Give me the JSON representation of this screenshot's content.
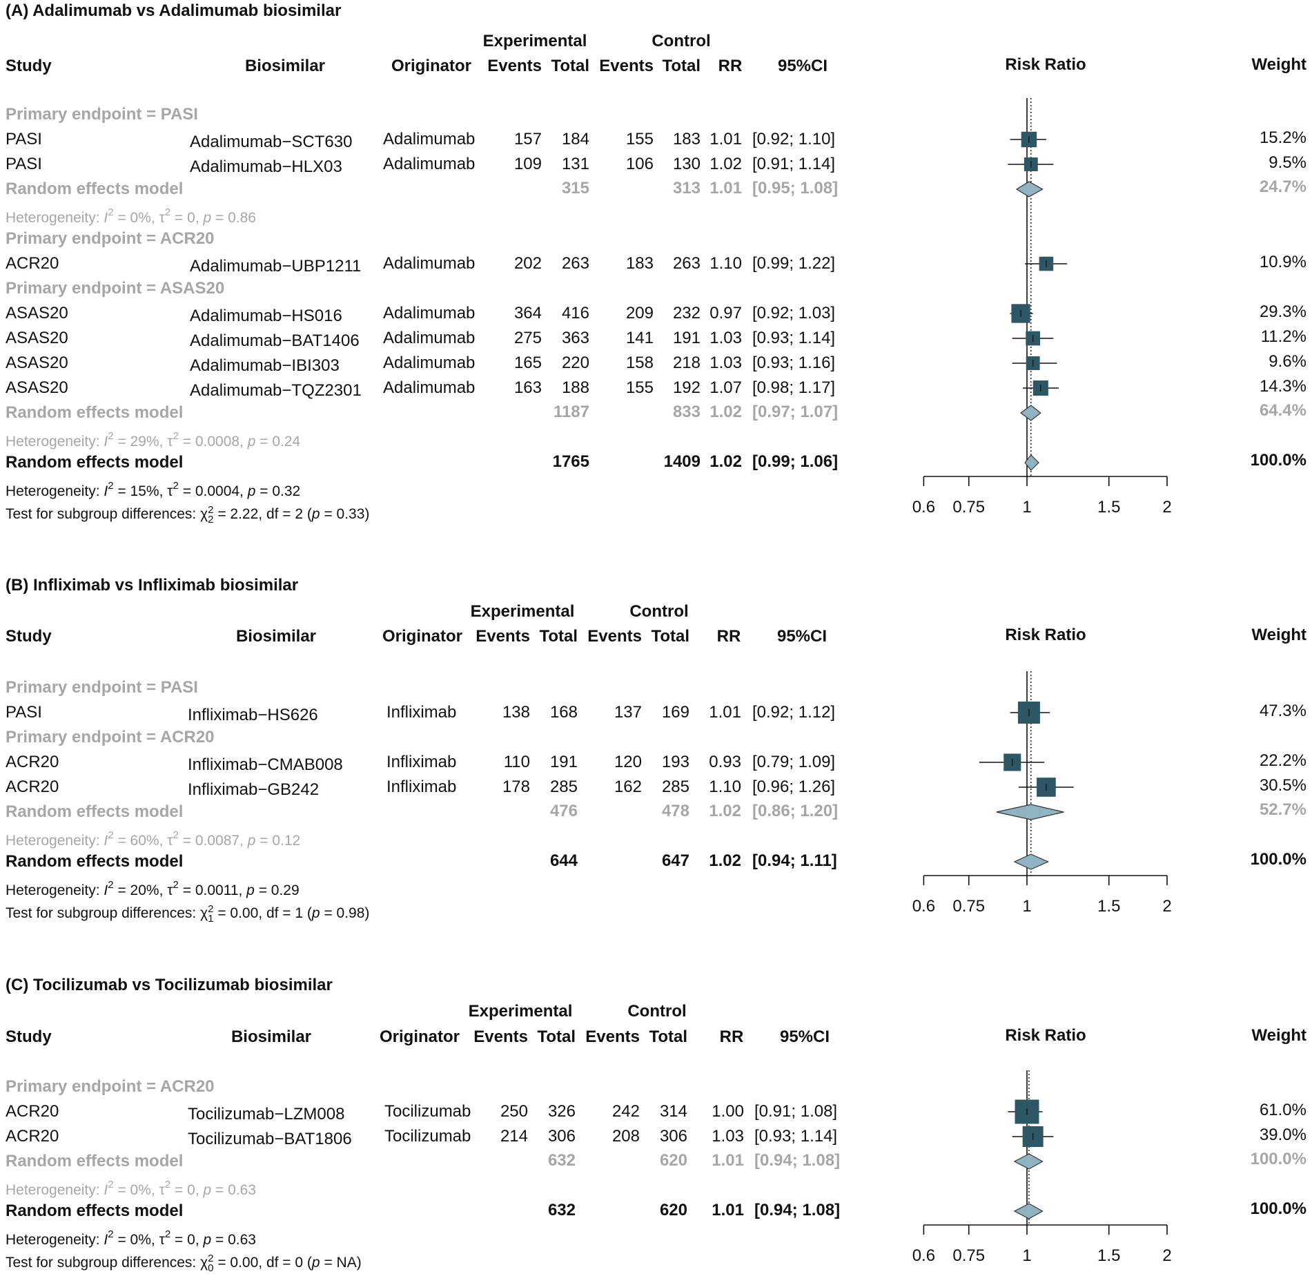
{
  "chart_data": {
    "type": "forest",
    "measure": "Risk Ratio",
    "xaxis_ticks": [
      "0.6",
      "0.75",
      "1",
      "1.5",
      "2"
    ],
    "xaxis_scale": "log",
    "panels": [
      {
        "title": "(A) Adalimumab  vs Adalimumab biosimilar",
        "headers": {
          "study": "Study",
          "biosimilar": "Biosimilar",
          "originator": "Originator",
          "experimental": "Experimental",
          "control": "Control",
          "events": "Events",
          "total": "Total",
          "rr": "RR",
          "ci": "95%CI",
          "plot": "Risk Ratio",
          "weight": "Weight"
        },
        "rows": [
          {
            "type": "subgroup",
            "label": "Primary endpoint = PASI"
          },
          {
            "type": "study",
            "study": "PASI",
            "biosimilar": "Adalimumab−SCT630",
            "originator": "Adalimumab",
            "e_events": "157",
            "e_total": "184",
            "c_events": "155",
            "c_total": "183",
            "rr": "1.01",
            "ci": "[0.92; 1.10]",
            "weight": "15.2%",
            "est": 1.01,
            "lo": 0.92,
            "hi": 1.1,
            "w": 15.2
          },
          {
            "type": "study",
            "study": "PASI",
            "biosimilar": "Adalimumab−HLX03",
            "originator": "Adalimumab",
            "e_events": "109",
            "e_total": "131",
            "c_events": "106",
            "c_total": "130",
            "rr": "1.02",
            "ci": "[0.91; 1.14]",
            "weight": "9.5%",
            "est": 1.02,
            "lo": 0.91,
            "hi": 1.14,
            "w": 9.5
          },
          {
            "type": "sub_model",
            "label": "Random effects model",
            "e_total": "315",
            "c_total": "313",
            "rr": "1.01",
            "ci": "[0.95; 1.08]",
            "weight": "24.7%",
            "est": 1.01,
            "lo": 0.95,
            "hi": 1.08
          },
          {
            "type": "sub_het",
            "label": "Heterogeneity: I² = 0%, τ² = 0, p = 0.86"
          },
          {
            "type": "subgroup",
            "label": "Primary endpoint = ACR20"
          },
          {
            "type": "study",
            "study": "ACR20",
            "biosimilar": "Adalimumab−UBP1211",
            "originator": "Adalimumab",
            "e_events": "202",
            "e_total": "263",
            "c_events": "183",
            "c_total": "263",
            "rr": "1.10",
            "ci": "[0.99; 1.22]",
            "weight": "10.9%",
            "est": 1.1,
            "lo": 0.99,
            "hi": 1.22,
            "w": 10.9
          },
          {
            "type": "subgroup",
            "label": "Primary endpoint = ASAS20"
          },
          {
            "type": "study",
            "study": "ASAS20",
            "biosimilar": "Adalimumab−HS016",
            "originator": "Adalimumab",
            "e_events": "364",
            "e_total": "416",
            "c_events": "209",
            "c_total": "232",
            "rr": "0.97",
            "ci": "[0.92; 1.03]",
            "weight": "29.3%",
            "est": 0.97,
            "lo": 0.92,
            "hi": 1.03,
            "w": 29.3
          },
          {
            "type": "study",
            "study": "ASAS20",
            "biosimilar": "Adalimumab−BAT1406",
            "originator": "Adalimumab",
            "e_events": "275",
            "e_total": "363",
            "c_events": "141",
            "c_total": "191",
            "rr": "1.03",
            "ci": "[0.93; 1.14]",
            "weight": "11.2%",
            "est": 1.03,
            "lo": 0.93,
            "hi": 1.14,
            "w": 11.2
          },
          {
            "type": "study",
            "study": "ASAS20",
            "biosimilar": "Adalimumab−IBI303",
            "originator": "Adalimumab",
            "e_events": "165",
            "e_total": "220",
            "c_events": "158",
            "c_total": "218",
            "rr": "1.03",
            "ci": "[0.93; 1.16]",
            "weight": "9.6%",
            "est": 1.03,
            "lo": 0.93,
            "hi": 1.16,
            "w": 9.6
          },
          {
            "type": "study",
            "study": "ASAS20",
            "biosimilar": "Adalimumab−TQZ2301",
            "originator": "Adalimumab",
            "e_events": "163",
            "e_total": "188",
            "c_events": "155",
            "c_total": "192",
            "rr": "1.07",
            "ci": "[0.98; 1.17]",
            "weight": "14.3%",
            "est": 1.07,
            "lo": 0.98,
            "hi": 1.17,
            "w": 14.3
          },
          {
            "type": "sub_model",
            "label": "Random effects model",
            "e_total": "1187",
            "c_total": "833",
            "rr": "1.02",
            "ci": "[0.97; 1.07]",
            "weight": "64.4%",
            "est": 1.02,
            "lo": 0.97,
            "hi": 1.07
          },
          {
            "type": "sub_het",
            "label": "Heterogeneity: I² = 29%, τ² = 0.0008, p = 0.24"
          },
          {
            "type": "overall",
            "label": "Random effects model",
            "e_total": "1765",
            "c_total": "1409",
            "rr": "1.02",
            "ci": "[0.99; 1.06]",
            "weight": "100.0%",
            "est": 1.02,
            "lo": 0.99,
            "hi": 1.06
          },
          {
            "type": "het",
            "label": "Heterogeneity: I² = 15%, τ² = 0.0004, p = 0.32"
          },
          {
            "type": "test",
            "label": "Test for subgroup differences: χ₂² = 2.22, df = 2 (p = 0.33)"
          }
        ]
      },
      {
        "title": "(B) Infliximab  vs Infliximab biosimilar",
        "headers": {
          "study": "Study",
          "biosimilar": "Biosimilar",
          "originator": "Originator",
          "experimental": "Experimental",
          "control": "Control",
          "events": "Events",
          "total": "Total",
          "rr": "RR",
          "ci": "95%CI",
          "plot": "Risk Ratio",
          "weight": "Weight"
        },
        "rows": [
          {
            "type": "subgroup",
            "label": "Primary endpoint = PASI"
          },
          {
            "type": "study",
            "study": "PASI",
            "biosimilar": "Infliximab−HS626",
            "originator": "Infliximab",
            "e_events": "138",
            "e_total": "168",
            "c_events": "137",
            "c_total": "169",
            "rr": "1.01",
            "ci": "[0.92; 1.12]",
            "weight": "47.3%",
            "est": 1.01,
            "lo": 0.92,
            "hi": 1.12,
            "w": 47.3
          },
          {
            "type": "subgroup",
            "label": "Primary endpoint = ACR20"
          },
          {
            "type": "study",
            "study": "ACR20",
            "biosimilar": "Infliximab−CMAB008",
            "originator": "Infliximab",
            "e_events": "110",
            "e_total": "191",
            "c_events": "120",
            "c_total": "193",
            "rr": "0.93",
            "ci": "[0.79; 1.09]",
            "weight": "22.2%",
            "est": 0.93,
            "lo": 0.79,
            "hi": 1.09,
            "w": 22.2
          },
          {
            "type": "study",
            "study": "ACR20",
            "biosimilar": "Infliximab−GB242",
            "originator": "Infliximab",
            "e_events": "178",
            "e_total": "285",
            "c_events": "162",
            "c_total": "285",
            "rr": "1.10",
            "ci": "[0.96; 1.26]",
            "weight": "30.5%",
            "est": 1.1,
            "lo": 0.96,
            "hi": 1.26,
            "w": 30.5
          },
          {
            "type": "sub_model",
            "label": "Random effects model",
            "e_total": "476",
            "c_total": "478",
            "rr": "1.02",
            "ci": "[0.86; 1.20]",
            "weight": "52.7%",
            "est": 1.02,
            "lo": 0.86,
            "hi": 1.2
          },
          {
            "type": "sub_het",
            "label": "Heterogeneity: I² = 60%, τ² = 0.0087, p = 0.12"
          },
          {
            "type": "overall",
            "label": "Random effects model",
            "e_total": "644",
            "c_total": "647",
            "rr": "1.02",
            "ci": "[0.94; 1.11]",
            "weight": "100.0%",
            "est": 1.02,
            "lo": 0.94,
            "hi": 1.11
          },
          {
            "type": "het",
            "label": "Heterogeneity: I² = 20%, τ² = 0.0011, p = 0.29"
          },
          {
            "type": "test",
            "label": "Test for subgroup differences: χ₁² = 0.00, df = 1 (p = 0.98)"
          }
        ]
      },
      {
        "title": "(C) Tocilizumab  vs Tocilizumab biosimilar",
        "headers": {
          "study": "Study",
          "biosimilar": "Biosimilar",
          "originator": "Originator",
          "experimental": "Experimental",
          "control": "Control",
          "events": "Events",
          "total": "Total",
          "rr": "RR",
          "ci": "95%CI",
          "plot": "Risk Ratio",
          "weight": "Weight"
        },
        "rows": [
          {
            "type": "subgroup",
            "label": "Primary endpoint = ACR20"
          },
          {
            "type": "study",
            "study": "ACR20",
            "biosimilar": "Tocilizumab−LZM008",
            "originator": "Tocilizumab",
            "e_events": "250",
            "e_total": "326",
            "c_events": "242",
            "c_total": "314",
            "rr": "1.00",
            "ci": "[0.91; 1.08]",
            "weight": "61.0%",
            "est": 1.0,
            "lo": 0.91,
            "hi": 1.08,
            "w": 61.0
          },
          {
            "type": "study",
            "study": "ACR20",
            "biosimilar": "Tocilizumab−BAT1806",
            "originator": "Tocilizumab",
            "e_events": "214",
            "e_total": "306",
            "c_events": "208",
            "c_total": "306",
            "rr": "1.03",
            "ci": "[0.93; 1.14]",
            "weight": "39.0%",
            "est": 1.03,
            "lo": 0.93,
            "hi": 1.14,
            "w": 39.0
          },
          {
            "type": "sub_model",
            "label": "Random effects model",
            "e_total": "632",
            "c_total": "620",
            "rr": "1.01",
            "ci": "[0.94; 1.08]",
            "weight": "100.0%",
            "est": 1.01,
            "lo": 0.94,
            "hi": 1.08
          },
          {
            "type": "sub_het",
            "label": "Heterogeneity: I² = 0%, τ² = 0, p = 0.63"
          },
          {
            "type": "overall",
            "label": "Random effects model",
            "e_total": "632",
            "c_total": "620",
            "rr": "1.01",
            "ci": "[0.94; 1.08]",
            "weight": "100.0%",
            "est": 1.01,
            "lo": 0.94,
            "hi": 1.08
          },
          {
            "type": "het",
            "label": "Heterogeneity: I² = 0%, τ² = 0, p = 0.63"
          },
          {
            "type": "test",
            "label": "Test for subgroup differences: χ₀² = 0.00, df = 0 (p = NA)"
          }
        ]
      }
    ]
  },
  "colors": {
    "square": "#2e5766",
    "diamond": "#8fb3c0",
    "grey_text": "#a6a6a6",
    "line": "#111111"
  }
}
